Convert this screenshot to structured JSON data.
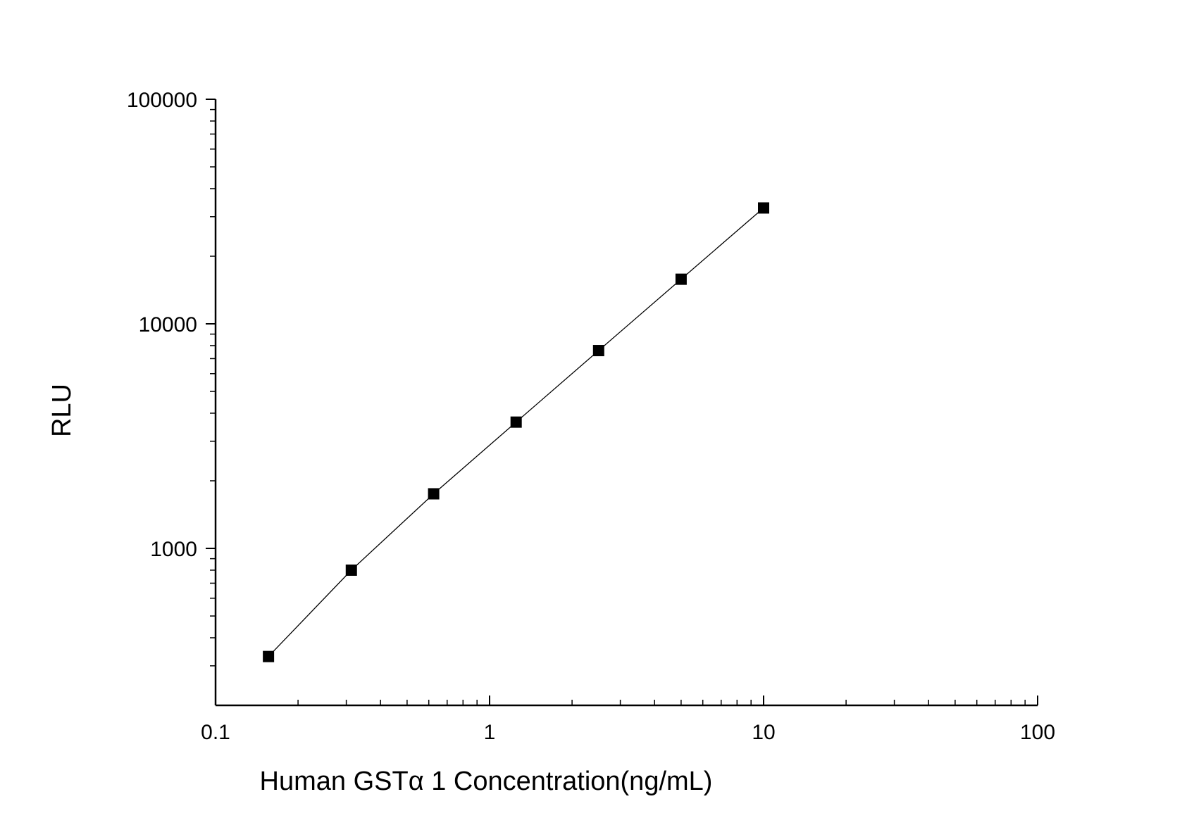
{
  "chart_data": {
    "type": "scatter",
    "title": "",
    "xlabel": "Human  GSTα 1  Concentration(ng/mL)",
    "ylabel": "RLU",
    "x_scale": "log",
    "y_scale": "log",
    "xlim": [
      0.1,
      100
    ],
    "ylim": [
      200,
      100000
    ],
    "x_ticks": [
      "0.1",
      "1",
      "10",
      "100"
    ],
    "y_ticks": [
      "1000",
      "10000",
      "100000"
    ],
    "grid": false,
    "legend": "none",
    "series": [
      {
        "marker": "square",
        "line": "connected",
        "color": "#000000",
        "x": [
          0.156,
          0.313,
          0.625,
          1.25,
          2.5,
          5,
          10
        ],
        "y": [
          330,
          800,
          1750,
          3650,
          7600,
          15800,
          32800
        ]
      }
    ]
  }
}
